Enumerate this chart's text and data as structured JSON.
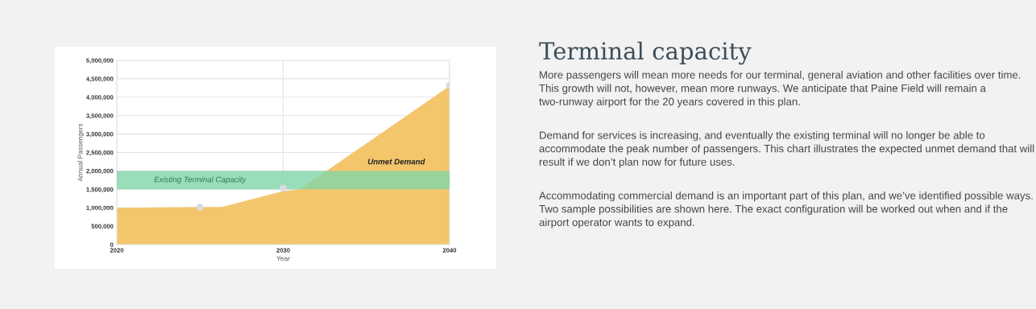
{
  "chart_data": [
    {
      "type": "area",
      "xlabel": "Year",
      "ylabel": "Annual Passengers",
      "xlim": [
        2020,
        2040
      ],
      "xticks": [
        2020,
        2030,
        2040
      ],
      "ylim": [
        0,
        5000000
      ],
      "yticks": [
        {
          "value": 0,
          "label": "0"
        },
        {
          "value": 500000,
          "label": "500,000"
        },
        {
          "value": 1000000,
          "label": "1,000,000"
        },
        {
          "value": 1500000,
          "label": "1,500,000"
        },
        {
          "value": 2000000,
          "label": "2,000,000"
        },
        {
          "value": 2500000,
          "label": "2,500,000"
        },
        {
          "value": 3000000,
          "label": "3,000,000"
        },
        {
          "value": 3500000,
          "label": "3,500,000"
        },
        {
          "value": 4000000,
          "label": "4,000,000"
        },
        {
          "value": 4500000,
          "label": "4,500,000"
        },
        {
          "value": 5000000,
          "label": "5,000,000"
        }
      ],
      "grid": true,
      "series": [
        {
          "type": "area",
          "color": "#f3c66b",
          "x": [
            2020,
            2025,
            2026.3,
            2030,
            2031,
            2040
          ],
          "values": [
            1000000,
            1020000,
            1020000,
            1450000,
            1500000,
            4300000
          ]
        },
        {
          "type": "scatter",
          "color": "#d9dce3",
          "marker": "circle",
          "x": [
            2025,
            2030,
            2040
          ],
          "values": [
            1020000,
            1530000,
            4320000
          ]
        }
      ],
      "bands": [
        {
          "axis": "y",
          "from": 1500000,
          "to": 2000000,
          "label": "Existing Terminal Capacity",
          "color": "#7fd6a8"
        }
      ],
      "annotations": [
        "Unmet Demand"
      ]
    },
    {
      "type": "other",
      "title": "Terminal capacity",
      "annotations": [
        "More passengers will mean more needs for our terminal, general aviation and other facilities over time. This growth will not, however, mean more runways. We anticipate that Paine Field will remain a two-runway airport for the 20 years covered in this plan.",
        "Demand for services is increasing, and eventually the existing terminal will no longer be able to accommodate the peak number of passengers. This chart illustrates the expected unmet demand that will result if we don’t plan now for future uses.",
        "Accommodating commercial demand is an important part of this plan, and we’ve identified possible ways. Two sample possibilities are shown here. The exact configuration will be worked out when and if the airport operator wants to expand."
      ]
    }
  ]
}
